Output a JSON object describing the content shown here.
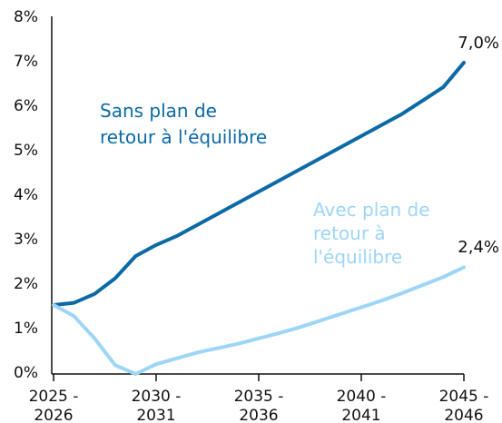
{
  "chart_data": {
    "type": "line",
    "categories": [
      "2025 -\n2026",
      null,
      null,
      null,
      null,
      "2030 -\n2031",
      null,
      null,
      null,
      null,
      "2035 -\n2036",
      null,
      null,
      null,
      null,
      "2040 -\n2041",
      null,
      null,
      null,
      null,
      "2045 -\n2046"
    ],
    "series": [
      {
        "name": "Sans plan de\nretour à l'équilibre",
        "color": "#0b6aa6",
        "values": [
          1.55,
          1.6,
          1.8,
          2.15,
          2.65,
          2.9,
          3.1,
          3.35,
          3.6,
          3.85,
          4.1,
          4.35,
          4.6,
          4.85,
          5.1,
          5.35,
          5.6,
          5.85,
          6.15,
          6.45,
          7.0
        ],
        "value_labels": [
          null,
          null,
          null,
          null,
          null,
          null,
          null,
          null,
          null,
          null,
          null,
          null,
          null,
          null,
          null,
          null,
          null,
          null,
          null,
          null,
          "7,0%"
        ]
      },
      {
        "name": "Avec plan de\nretour à\nl'équilibre",
        "color": "#9dd5f7",
        "values": [
          1.55,
          1.3,
          0.8,
          0.2,
          0.0,
          0.22,
          0.35,
          0.48,
          0.58,
          0.68,
          0.8,
          0.92,
          1.05,
          1.2,
          1.35,
          1.5,
          1.65,
          1.82,
          2.0,
          2.18,
          2.4
        ],
        "value_labels": [
          null,
          null,
          null,
          null,
          null,
          null,
          null,
          null,
          null,
          null,
          null,
          null,
          null,
          null,
          null,
          null,
          null,
          null,
          null,
          null,
          "2,4%"
        ]
      }
    ],
    "ylim": [
      0,
      8
    ],
    "yticks": [
      {
        "value": 0,
        "label": "0%"
      },
      {
        "value": 1,
        "label": "1%"
      },
      {
        "value": 2,
        "label": "2%"
      },
      {
        "value": 3,
        "label": "3%"
      },
      {
        "value": 4,
        "label": "4%"
      },
      {
        "value": 5,
        "label": "5%"
      },
      {
        "value": 6,
        "label": "6%"
      },
      {
        "value": 7,
        "label": "7%"
      },
      {
        "value": 8,
        "label": "8%"
      }
    ],
    "grid": false
  }
}
